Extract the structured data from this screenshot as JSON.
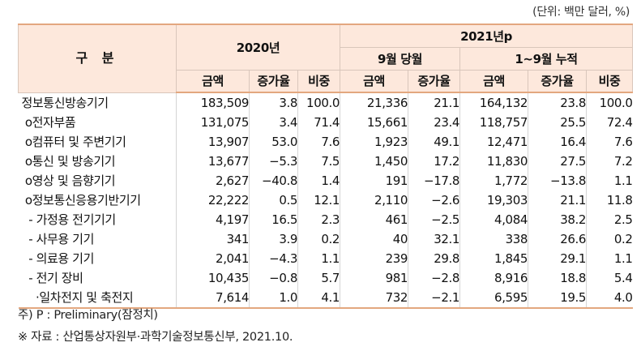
{
  "unit": "(단위: 백만 달러, %)",
  "header": {
    "gubun": "구 분",
    "y2020": "2020년",
    "y2021": "2021년p",
    "sep_month": "9월 당월",
    "cum": "1~9월 누적",
    "amount": "금액",
    "growth": "증가율",
    "share": "비중"
  },
  "rows": [
    {
      "label": "정보통신방송기기",
      "a2020": "183,509",
      "g2020": "3.8",
      "s2020": "100.0",
      "aSep": "21,336",
      "gSep": "21.1",
      "aCum": "164,132",
      "gCum": "23.8",
      "sCum": "100.0"
    },
    {
      "label": " o전자부품",
      "a2020": "131,075",
      "g2020": "3.4",
      "s2020": "71.4",
      "aSep": "15,661",
      "gSep": "23.4",
      "aCum": "118,757",
      "gCum": "25.5",
      "sCum": "72.4"
    },
    {
      "label": " o컴퓨터 및 주변기기",
      "a2020": "13,907",
      "g2020": "53.0",
      "s2020": "7.6",
      "aSep": "1,923",
      "gSep": "49.1",
      "aCum": "12,471",
      "gCum": "16.4",
      "sCum": "7.6"
    },
    {
      "label": " o통신 및 방송기기",
      "a2020": "13,677",
      "g2020": "−5.3",
      "s2020": "7.5",
      "aSep": "1,450",
      "gSep": "17.2",
      "aCum": "11,830",
      "gCum": "27.5",
      "sCum": "7.2"
    },
    {
      "label": " o영상 및 음향기기",
      "a2020": "2,627",
      "g2020": "−40.8",
      "s2020": "1.4",
      "aSep": "191",
      "gSep": "−17.8",
      "aCum": "1,772",
      "gCum": "−13.8",
      "sCum": "1.1"
    },
    {
      "label": " o정보통신응용기반기기",
      "a2020": "22,222",
      "g2020": "0.5",
      "s2020": "12.1",
      "aSep": "2,110",
      "gSep": "−2.6",
      "aCum": "19,303",
      "gCum": "21.1",
      "sCum": "11.8"
    },
    {
      "label": "  - 가정용 전기기기",
      "a2020": "4,197",
      "g2020": "16.5",
      "s2020": "2.3",
      "aSep": "461",
      "gSep": "−2.5",
      "aCum": "4,084",
      "gCum": "38.2",
      "sCum": "2.5"
    },
    {
      "label": "  - 사무용 기기",
      "a2020": "341",
      "g2020": "3.9",
      "s2020": "0.2",
      "aSep": "40",
      "gSep": "32.1",
      "aCum": "338",
      "gCum": "26.6",
      "sCum": "0.2"
    },
    {
      "label": "  - 의료용 기기",
      "a2020": "2,041",
      "g2020": "−4.3",
      "s2020": "1.1",
      "aSep": "239",
      "gSep": "29.8",
      "aCum": "1,845",
      "gCum": "29.1",
      "sCum": "1.1"
    },
    {
      "label": "  - 전기 장비",
      "a2020": "10,435",
      "g2020": "−0.8",
      "s2020": "5.7",
      "aSep": "981",
      "gSep": "−2.8",
      "aCum": "8,916",
      "gCum": "18.8",
      "sCum": "5.4"
    },
    {
      "label": "    ·일차전지 및 축전지",
      "a2020": "7,614",
      "g2020": "1.0",
      "s2020": "4.1",
      "aSep": "732",
      "gSep": "−2.1",
      "aCum": "6,595",
      "gCum": "19.5",
      "sCum": "4.0"
    }
  ],
  "notes": {
    "note1": "주) P : Preliminary(잠정치)",
    "note2": "※ 자료 : 산업통상자원부·과학기술정보통신부, 2021.10."
  }
}
